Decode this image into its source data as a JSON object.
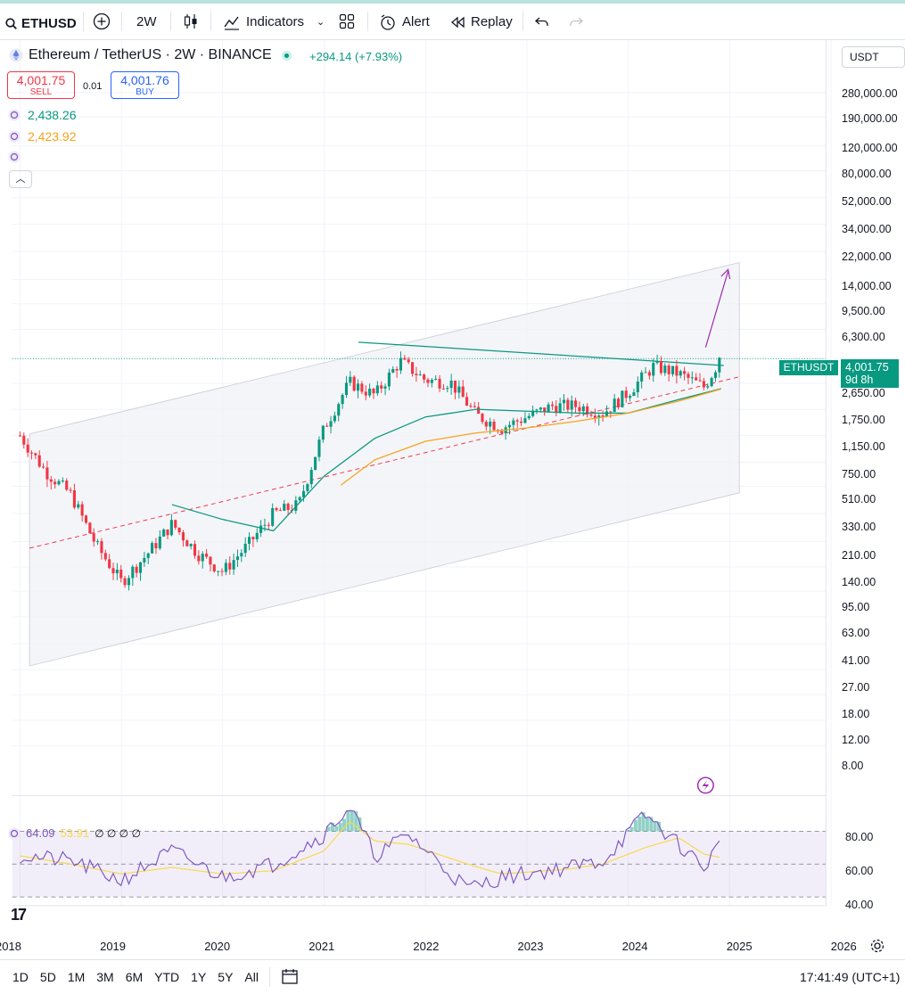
{
  "toolbar": {
    "symbol": "ETHUSD",
    "interval": "2W",
    "indicators_label": "Indicators",
    "alert_label": "Alert",
    "replay_label": "Replay"
  },
  "header": {
    "title": "Ethereum / TetherUS · 2W · BINANCE",
    "change": "+294.14 (+7.93%)",
    "sell_price": "4,001.75",
    "sell_label": "SELL",
    "spread": "0.01",
    "buy_price": "4,001.76",
    "buy_label": "BUY"
  },
  "indicators": [
    {
      "value": "2,438.26",
      "color": "#089981"
    },
    {
      "value": "2,423.92",
      "color": "#f7a21b"
    },
    {
      "value": "",
      "color": "#7e57c2"
    }
  ],
  "rsi_legend": {
    "rsi": "64.09",
    "ma": "53.91",
    "empty": "∅ ∅ ∅ ∅"
  },
  "currency": "USDT",
  "price_axis": [
    "280,000.00",
    "190,000.00",
    "120,000.00",
    "80,000.00",
    "52,000.00",
    "34,000.00",
    "22,000.00",
    "14,000.00",
    "9,500.00",
    "6,300.00",
    "2,650.00",
    "1,750.00",
    "1,150.00",
    "750.00",
    "510.00",
    "330.00",
    "210.00",
    "140.00",
    "95.00",
    "63.00",
    "41.00",
    "27.00",
    "18.00",
    "12.00",
    "8.00"
  ],
  "rsi_axis": [
    "80.00",
    "60.00",
    "40.00"
  ],
  "last_price": {
    "symbol": "ETHUSDT",
    "price": "4,001.75",
    "countdown": "9d 8h"
  },
  "time_axis": [
    "2018",
    "2019",
    "2020",
    "2021",
    "2022",
    "2023",
    "2024",
    "2025",
    "2026"
  ],
  "bottom": {
    "ranges": [
      "1D",
      "5D",
      "1M",
      "3M",
      "6M",
      "YTD",
      "1Y",
      "5Y",
      "All"
    ],
    "clock": "17:41:49 (UTC+1)"
  },
  "colors": {
    "up": "#089981",
    "down": "#f23645",
    "ema1": "#089981",
    "ema2": "#f7a21b",
    "rsi": "#7e57c2",
    "rsi_ma": "#f9d84a"
  },
  "chart_data": {
    "type": "candlestick",
    "symbol": "ETHUSDT",
    "interval": "2W",
    "y_scale": "log",
    "ylim": [
      8,
      280000
    ],
    "xlim": [
      "2018-01",
      "2026-01"
    ],
    "x": [
      "2018-01",
      "2018-04",
      "2018-07",
      "2018-10",
      "2019-01",
      "2019-04",
      "2019-07",
      "2019-10",
      "2020-01",
      "2020-04",
      "2020-07",
      "2020-10",
      "2021-01",
      "2021-04",
      "2021-07",
      "2021-10",
      "2022-01",
      "2022-04",
      "2022-07",
      "2022-10",
      "2023-01",
      "2023-04",
      "2023-07",
      "2023-10",
      "2024-01",
      "2024-04",
      "2024-07",
      "2024-10",
      "2024-12"
    ],
    "close": [
      1150,
      650,
      450,
      200,
      110,
      170,
      280,
      175,
      130,
      200,
      330,
      380,
      1300,
      2700,
      2200,
      3800,
      2800,
      2700,
      1600,
      1300,
      1550,
      1850,
      1850,
      1650,
      2300,
      3500,
      3100,
      2500,
      4001.75
    ],
    "series": [
      {
        "name": "2,438.26",
        "type": "line",
        "x": [
          "2019-07",
          "2020-01",
          "2020-07",
          "2021-01",
          "2021-07",
          "2022-01",
          "2022-07",
          "2023-01",
          "2023-07",
          "2024-01",
          "2024-07",
          "2024-12"
        ],
        "values": [
          380,
          300,
          250,
          600,
          1100,
          1550,
          1750,
          1700,
          1650,
          1650,
          2050,
          2438.26
        ]
      },
      {
        "name": "2,423.92",
        "type": "line",
        "x": [
          "2021-03",
          "2021-07",
          "2022-01",
          "2022-07",
          "2023-01",
          "2023-07",
          "2024-01",
          "2024-07",
          "2024-12"
        ],
        "values": [
          520,
          780,
          1050,
          1200,
          1300,
          1450,
          1650,
          2000,
          2423.92
        ]
      }
    ],
    "rsi": {
      "ylim": [
        30,
        90
      ],
      "x": [
        "2018-01",
        "2018-07",
        "2019-01",
        "2019-07",
        "2020-01",
        "2020-07",
        "2021-01",
        "2021-04",
        "2021-07",
        "2021-11",
        "2022-06",
        "2022-10",
        "2023-06",
        "2023-10",
        "2024-03",
        "2024-07",
        "2024-10",
        "2024-12"
      ],
      "values": [
        55,
        52,
        40,
        58,
        42,
        50,
        68,
        85,
        55,
        68,
        35,
        42,
        48,
        52,
        80,
        62,
        48,
        64.09
      ],
      "ma_values": [
        55,
        50,
        44,
        48,
        44,
        46,
        58,
        76,
        64,
        62,
        50,
        44,
        47,
        50,
        60,
        66,
        56,
        53.91
      ]
    }
  }
}
